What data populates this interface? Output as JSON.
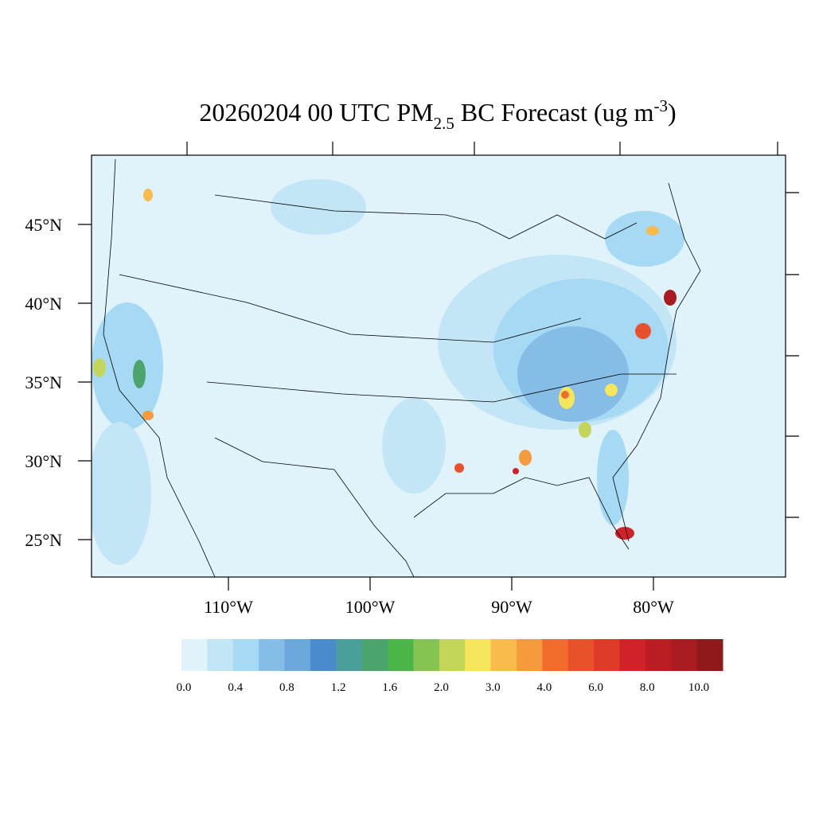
{
  "title": {
    "main": "20260204 00 UTC PM",
    "sub": "2.5",
    "mid": " BC Forecast (ug m",
    "sup": "-3",
    "end": ")"
  },
  "latitude_labels": [
    "45°N",
    "40°N",
    "35°N",
    "30°N",
    "25°N"
  ],
  "longitude_labels": [
    "110°W",
    "100°W",
    "90°W",
    "80°W"
  ],
  "colorbar": {
    "colors": [
      "#e0f3fb",
      "#c3e6f7",
      "#a6daf4",
      "#86bde6",
      "#6aa7db",
      "#4a8bce",
      "#4a9e9c",
      "#4aa46b",
      "#4bb548",
      "#86c451",
      "#c4d65a",
      "#f6e65c",
      "#f8bb4c",
      "#f69a3e",
      "#f26d2c",
      "#e8522b",
      "#dd3a28",
      "#d22229",
      "#bb1d23",
      "#a81b20",
      "#8f191b"
    ],
    "labels": [
      "0.0",
      "0.4",
      "0.8",
      "1.2",
      "1.6",
      "2.0",
      "3.0",
      "4.0",
      "6.0",
      "8.0",
      "10.0"
    ]
  }
}
